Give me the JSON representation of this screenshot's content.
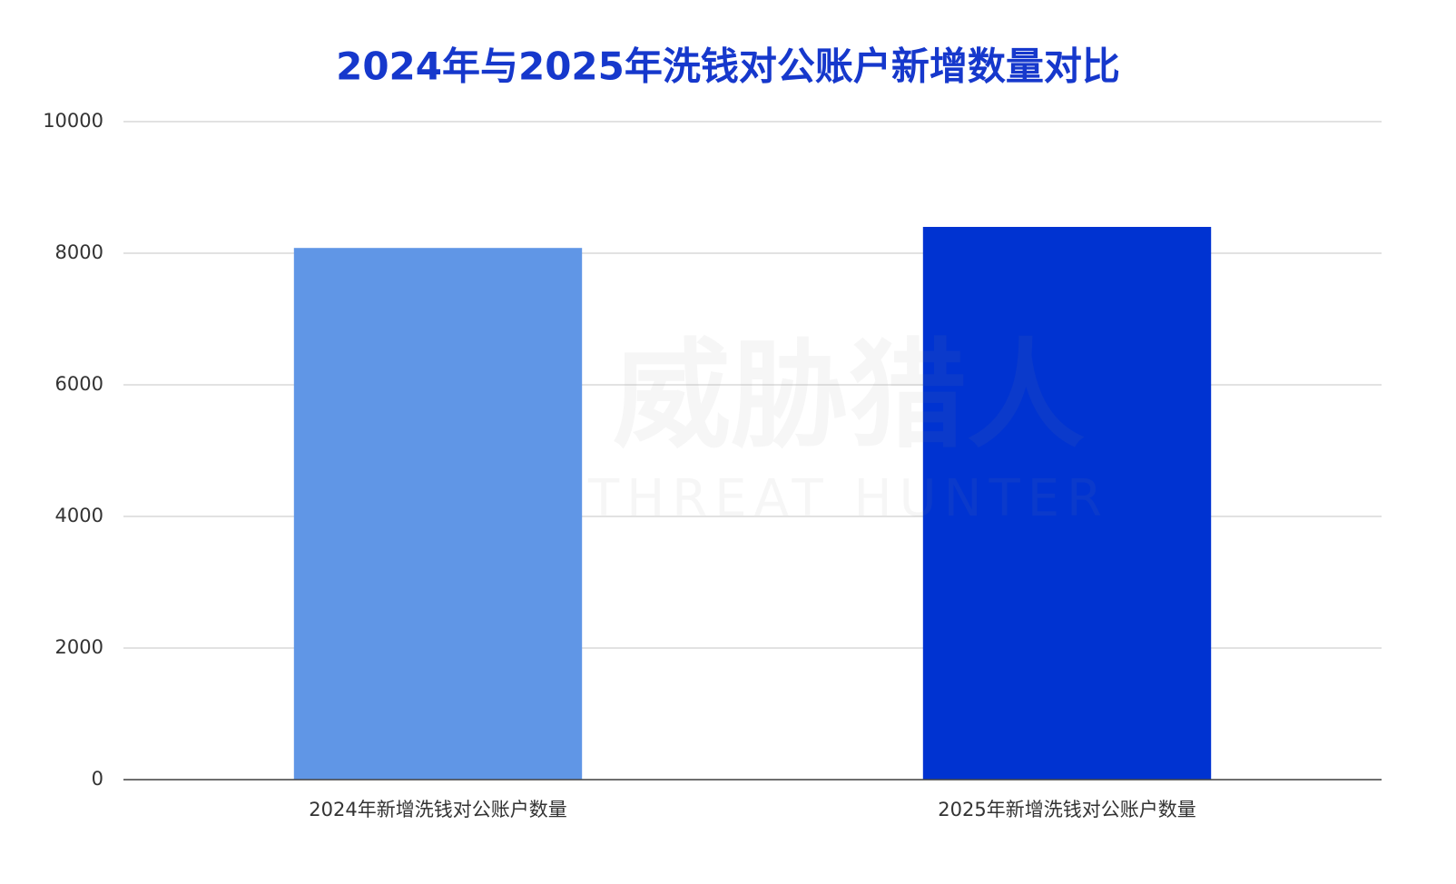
{
  "chart_data": {
    "type": "bar",
    "title": "2024年与2025年洗钱对公账户新增数量对比",
    "categories": [
      "2024年新增洗钱对公账户数量",
      "2025年新增洗钱对公账户数量"
    ],
    "values": [
      8080,
      8400
    ],
    "colors": [
      "#6096e6",
      "#0033d1"
    ],
    "ylim": [
      0,
      10000
    ],
    "yticks": [
      0,
      2000,
      4000,
      6000,
      8000,
      10000
    ],
    "grid": true,
    "watermark": "威胁猎人",
    "watermark_sub": "THREAT HUNTER"
  }
}
